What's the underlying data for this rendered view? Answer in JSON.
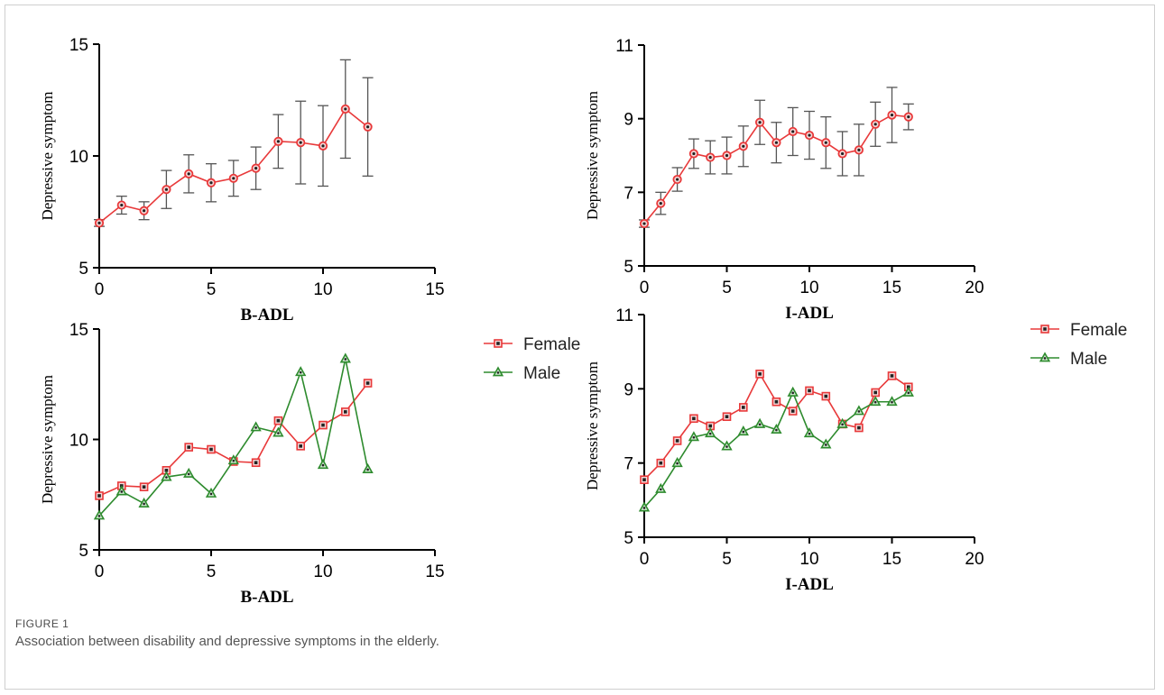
{
  "figure": {
    "label": "FIGURE 1",
    "caption": "Association between disability and depressive symptoms in the elderly."
  },
  "colors": {
    "female": "#e8393a",
    "male": "#2e8b2e",
    "axis": "#000000",
    "error_bar": "#555555"
  },
  "chart_data": [
    {
      "id": "badl-overall",
      "type": "line",
      "xlabel": "B-ADL",
      "ylabel": "Depressive symptom",
      "xlim": [
        0,
        15
      ],
      "ylim": [
        5,
        15
      ],
      "xticks": [
        0,
        5,
        10,
        15
      ],
      "yticks": [
        5,
        10,
        15
      ],
      "marker": "circle",
      "series": [
        {
          "color": "#e8393a",
          "x": [
            0,
            1,
            2,
            3,
            4,
            5,
            6,
            7,
            8,
            9,
            10,
            11,
            12
          ],
          "y": [
            7.0,
            7.8,
            7.55,
            8.5,
            9.2,
            8.8,
            9.0,
            9.45,
            10.65,
            10.6,
            10.45,
            12.1,
            11.3
          ],
          "err": [
            0.15,
            0.4,
            0.4,
            0.85,
            0.85,
            0.85,
            0.8,
            0.95,
            1.2,
            1.85,
            1.8,
            2.2,
            2.2
          ]
        }
      ]
    },
    {
      "id": "iadl-overall",
      "type": "line",
      "xlabel": "I-ADL",
      "ylabel": "Depressive symptom",
      "xlim": [
        0,
        20
      ],
      "ylim": [
        5,
        11
      ],
      "xticks": [
        0,
        5,
        10,
        15,
        20
      ],
      "yticks": [
        5,
        7,
        9,
        11
      ],
      "marker": "circle",
      "series": [
        {
          "color": "#e8393a",
          "x": [
            0,
            1,
            2,
            3,
            4,
            5,
            6,
            7,
            8,
            9,
            10,
            11,
            12,
            13,
            14,
            15,
            16
          ],
          "y": [
            6.15,
            6.7,
            7.35,
            8.05,
            7.95,
            8.0,
            8.25,
            8.9,
            8.35,
            8.65,
            8.55,
            8.35,
            8.05,
            8.15,
            8.85,
            9.1,
            9.05
          ],
          "err": [
            0.1,
            0.3,
            0.32,
            0.4,
            0.45,
            0.5,
            0.55,
            0.6,
            0.55,
            0.65,
            0.65,
            0.7,
            0.6,
            0.7,
            0.6,
            0.75,
            0.35
          ]
        }
      ]
    },
    {
      "id": "badl-by-sex",
      "type": "line",
      "xlabel": "B-ADL",
      "ylabel": "Depressive symptom",
      "xlim": [
        0,
        15
      ],
      "ylim": [
        5,
        15
      ],
      "xticks": [
        0,
        5,
        10,
        15
      ],
      "yticks": [
        5,
        10,
        15
      ],
      "legend": "right",
      "series": [
        {
          "name": "Female",
          "color": "#e8393a",
          "marker": "square",
          "x": [
            0,
            1,
            2,
            3,
            4,
            5,
            6,
            7,
            8,
            9,
            10,
            11,
            12
          ],
          "y": [
            7.45,
            7.9,
            7.85,
            8.6,
            9.65,
            9.55,
            9.0,
            8.95,
            10.85,
            9.7,
            10.65,
            11.25,
            12.55
          ]
        },
        {
          "name": "Male",
          "color": "#2e8b2e",
          "marker": "triangle",
          "x": [
            0,
            1,
            2,
            3,
            4,
            5,
            6,
            7,
            8,
            9,
            10,
            11,
            12
          ],
          "y": [
            6.55,
            7.65,
            7.1,
            8.3,
            8.45,
            7.55,
            9.05,
            10.55,
            10.3,
            13.05,
            8.85,
            13.65,
            8.65
          ]
        }
      ]
    },
    {
      "id": "iadl-by-sex",
      "type": "line",
      "xlabel": "I-ADL",
      "ylabel": "Depressive symptom",
      "xlim": [
        0,
        20
      ],
      "ylim": [
        5,
        11
      ],
      "xticks": [
        0,
        5,
        10,
        15,
        20
      ],
      "yticks": [
        5,
        7,
        9,
        11
      ],
      "legend": "right",
      "series": [
        {
          "name": "Female",
          "color": "#e8393a",
          "marker": "square",
          "x": [
            0,
            1,
            2,
            3,
            4,
            5,
            6,
            7,
            8,
            9,
            10,
            11,
            12,
            13,
            14,
            15,
            16
          ],
          "y": [
            6.55,
            7.0,
            7.6,
            8.2,
            8.0,
            8.25,
            8.5,
            9.4,
            8.65,
            8.4,
            8.95,
            8.8,
            8.05,
            7.95,
            8.9,
            9.35,
            9.05
          ]
        },
        {
          "name": "Male",
          "color": "#2e8b2e",
          "marker": "triangle",
          "x": [
            0,
            1,
            2,
            3,
            4,
            5,
            6,
            7,
            8,
            9,
            10,
            11,
            12,
            13,
            14,
            15,
            16
          ],
          "y": [
            5.8,
            6.3,
            7.0,
            7.7,
            7.8,
            7.45,
            7.85,
            8.05,
            7.9,
            8.9,
            7.8,
            7.5,
            8.05,
            8.4,
            8.65,
            8.65,
            8.9
          ]
        }
      ]
    }
  ]
}
